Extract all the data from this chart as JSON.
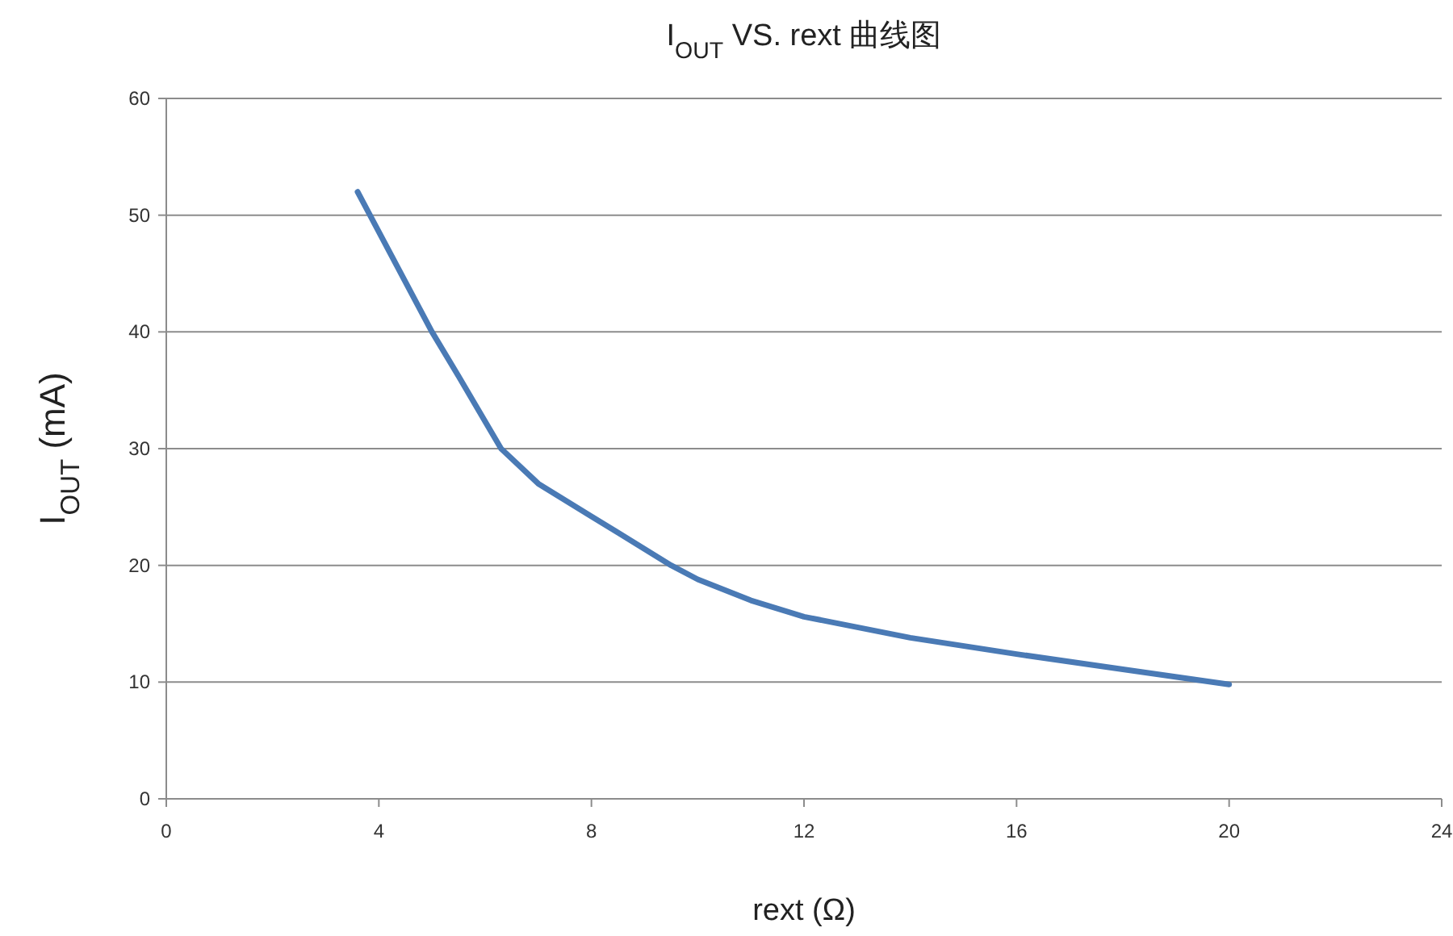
{
  "chart_data": {
    "type": "line",
    "title": "I$_{OUT}$ VS. rext 曲线图",
    "xlabel": "rext (Ω)",
    "ylabel": "I$_{OUT}$ (mA)",
    "x": [
      3.6,
      5,
      5.5,
      6.3,
      7,
      8,
      9.5,
      10,
      11,
      12,
      14,
      16,
      18,
      20
    ],
    "series": [
      {
        "color": "#4a7ab5",
        "values": [
          52,
          40,
          36.2,
          30,
          27,
          24.2,
          20,
          18.8,
          17,
          15.6,
          13.8,
          12.4,
          11.1,
          9.8
        ]
      }
    ],
    "xlim": [
      0,
      24
    ],
    "xticks": [
      0,
      4,
      8,
      12,
      16,
      20,
      24
    ],
    "ylim": [
      0,
      60
    ],
    "yticks": [
      0,
      10,
      20,
      30,
      40,
      50,
      60
    ],
    "grid": "y",
    "marker": "none",
    "line_style": "solid"
  }
}
